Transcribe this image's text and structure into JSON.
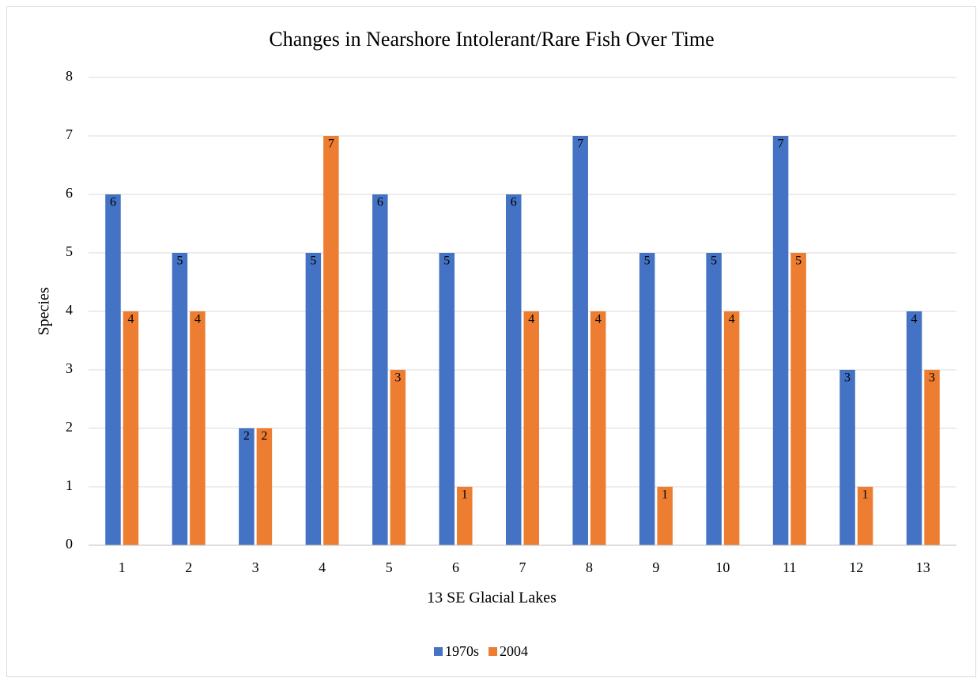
{
  "chart_data": {
    "type": "bar",
    "title": "Changes in Nearshore Intolerant/Rare Fish Over Time",
    "x_label": "13 SE Glacial Lakes",
    "y_label": "Species",
    "categories": [
      "1",
      "2",
      "3",
      "4",
      "5",
      "6",
      "7",
      "8",
      "9",
      "10",
      "11",
      "12",
      "13"
    ],
    "series": [
      {
        "name": "1970s",
        "color": "#4472c4",
        "values": [
          6,
          5,
          2,
          5,
          6,
          5,
          6,
          7,
          5,
          5,
          7,
          3,
          4
        ]
      },
      {
        "name": "2004",
        "color": "#ed7d31",
        "values": [
          4,
          4,
          2,
          7,
          3,
          1,
          4,
          4,
          1,
          4,
          5,
          1,
          3
        ]
      }
    ],
    "ylim": [
      0,
      8
    ],
    "yticks": [
      0,
      1,
      2,
      3,
      4,
      5,
      6,
      7,
      8
    ],
    "grid": true,
    "legend": "bottom"
  }
}
